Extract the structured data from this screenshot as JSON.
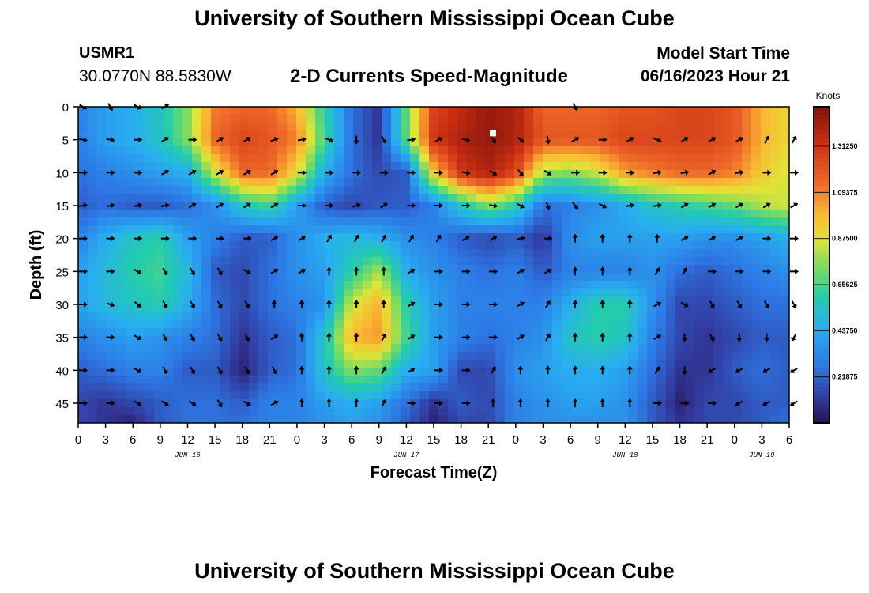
{
  "header": {
    "title": "University of Southern Mississippi Ocean Cube",
    "station": "USMR1",
    "coords": "30.0770N  88.5830W",
    "subtitle": "2-D Currents Speed-Magnitude",
    "start_label": "Model Start Time",
    "start_value": "06/16/2023 Hour 21"
  },
  "footer": {
    "title": "University of Southern Mississippi Ocean Cube"
  },
  "chart_data": {
    "type": "heatmap",
    "title": "2-D Currents Speed-Magnitude",
    "xlabel": "Forecast Time(Z)",
    "ylabel": "Depth (ft)",
    "x_range_hours": [
      0,
      78
    ],
    "y_range_ft": [
      0,
      48
    ],
    "y_reversed": true,
    "x_tick_labels": [
      "0",
      "3",
      "6",
      "9",
      "12",
      "15",
      "18",
      "21",
      "0",
      "3",
      "6",
      "9",
      "12",
      "15",
      "18",
      "21",
      "0",
      "3",
      "6",
      "9",
      "12",
      "15",
      "18",
      "21",
      "0",
      "3",
      "6"
    ],
    "x_tick_hours": [
      0,
      3,
      6,
      9,
      12,
      15,
      18,
      21,
      24,
      27,
      30,
      33,
      36,
      39,
      42,
      45,
      48,
      51,
      54,
      57,
      60,
      63,
      66,
      69,
      72,
      75,
      78
    ],
    "date_labels": [
      {
        "text": "JUN 16",
        "hour": 12
      },
      {
        "text": "JUN 17",
        "hour": 36
      },
      {
        "text": "JUN 18",
        "hour": 60
      },
      {
        "text": "JUN 19",
        "hour": 75
      }
    ],
    "y_ticks": [
      0,
      5,
      10,
      15,
      20,
      25,
      30,
      35,
      40,
      45
    ],
    "colorbar": {
      "title": "Knots",
      "range": [
        0,
        1.5
      ],
      "tick_values": [
        0.21875,
        0.4375,
        0.65625,
        0.875,
        1.09375,
        1.3125
      ],
      "tick_labels": [
        "0.21875",
        "0.43750",
        "0.65625",
        "0.87500",
        "1.09375",
        "1.31250"
      ]
    },
    "marker": {
      "hour": 45.5,
      "depth_ft": 4
    },
    "speed_depths_ft": [
      0,
      5,
      10,
      15,
      20,
      25,
      30,
      35,
      40,
      45,
      48
    ],
    "speed_hours": [
      0,
      3,
      6,
      9,
      12,
      15,
      18,
      21,
      24,
      27,
      30,
      33,
      36,
      39,
      42,
      45,
      48,
      51,
      54,
      57,
      60,
      63,
      66,
      69,
      72,
      75,
      78
    ],
    "speed_knots": [
      [
        0.3,
        0.4,
        0.45,
        0.55,
        0.75,
        1.1,
        1.15,
        1.15,
        1.0,
        0.6,
        0.25,
        0.1,
        0.7,
        1.25,
        1.35,
        1.45,
        1.4,
        1.15,
        1.15,
        1.15,
        1.2,
        1.2,
        1.25,
        1.25,
        1.2,
        1.0,
        0.9
      ],
      [
        0.3,
        0.4,
        0.45,
        0.55,
        0.75,
        1.15,
        1.25,
        1.2,
        1.1,
        0.65,
        0.25,
        0.1,
        0.7,
        1.3,
        1.4,
        1.45,
        1.4,
        1.2,
        1.2,
        1.2,
        1.25,
        1.25,
        1.25,
        1.25,
        1.2,
        1.0,
        0.9
      ],
      [
        0.25,
        0.3,
        0.35,
        0.4,
        0.45,
        0.85,
        1.15,
        1.15,
        0.9,
        0.45,
        0.25,
        0.15,
        0.2,
        0.95,
        1.3,
        1.4,
        1.25,
        0.8,
        0.75,
        0.85,
        1.05,
        1.1,
        1.15,
        1.15,
        1.1,
        0.95,
        0.85
      ],
      [
        0.2,
        0.25,
        0.2,
        0.2,
        0.25,
        0.35,
        0.55,
        0.65,
        0.4,
        0.2,
        0.15,
        0.2,
        0.2,
        0.3,
        0.55,
        0.75,
        0.6,
        0.25,
        0.3,
        0.35,
        0.45,
        0.55,
        0.6,
        0.65,
        0.7,
        0.8,
        0.85
      ],
      [
        0.3,
        0.45,
        0.55,
        0.6,
        0.4,
        0.3,
        0.2,
        0.2,
        0.35,
        0.45,
        0.5,
        0.45,
        0.35,
        0.3,
        0.2,
        0.15,
        0.2,
        0.1,
        0.35,
        0.4,
        0.4,
        0.4,
        0.4,
        0.35,
        0.35,
        0.4,
        0.45
      ],
      [
        0.4,
        0.5,
        0.6,
        0.65,
        0.5,
        0.2,
        0.15,
        0.25,
        0.35,
        0.4,
        0.6,
        0.8,
        0.45,
        0.35,
        0.3,
        0.25,
        0.3,
        0.2,
        0.3,
        0.3,
        0.3,
        0.35,
        0.25,
        0.2,
        0.25,
        0.3,
        0.35
      ],
      [
        0.4,
        0.5,
        0.55,
        0.6,
        0.45,
        0.25,
        0.15,
        0.25,
        0.3,
        0.35,
        0.85,
        1.0,
        0.6,
        0.4,
        0.3,
        0.3,
        0.3,
        0.3,
        0.45,
        0.6,
        0.6,
        0.35,
        0.15,
        0.15,
        0.2,
        0.25,
        0.25
      ],
      [
        0.3,
        0.35,
        0.4,
        0.35,
        0.3,
        0.25,
        0.1,
        0.2,
        0.25,
        0.55,
        1.0,
        1.05,
        0.65,
        0.4,
        0.3,
        0.25,
        0.3,
        0.35,
        0.55,
        0.6,
        0.55,
        0.3,
        0.15,
        0.1,
        0.15,
        0.2,
        0.2
      ],
      [
        0.2,
        0.25,
        0.3,
        0.3,
        0.2,
        0.2,
        0.05,
        0.2,
        0.25,
        0.55,
        0.75,
        0.7,
        0.45,
        0.4,
        0.15,
        0.15,
        0.35,
        0.4,
        0.45,
        0.45,
        0.4,
        0.25,
        0.1,
        0.1,
        0.2,
        0.25,
        0.2
      ],
      [
        0.15,
        0.1,
        0.15,
        0.2,
        0.25,
        0.25,
        0.2,
        0.3,
        0.3,
        0.4,
        0.45,
        0.4,
        0.25,
        0.1,
        0.2,
        0.15,
        0.3,
        0.35,
        0.4,
        0.4,
        0.35,
        0.2,
        0.05,
        0.15,
        0.15,
        0.2,
        0.2
      ],
      [
        0.15,
        0.1,
        0.05,
        0.2,
        0.25,
        0.25,
        0.25,
        0.3,
        0.3,
        0.35,
        0.4,
        0.35,
        0.2,
        0.05,
        0.15,
        0.15,
        0.3,
        0.35,
        0.35,
        0.35,
        0.35,
        0.2,
        0.1,
        0.15,
        0.15,
        0.2,
        0.25
      ]
    ],
    "vectors": [
      {
        "d": 0,
        "dirs": [
          120,
          150,
          120,
          60,
          null,
          null,
          null,
          null,
          null,
          null,
          null,
          null,
          null,
          null,
          null,
          null,
          null,
          null,
          150,
          null,
          null,
          null,
          null,
          null,
          null,
          null,
          null
        ]
      },
      {
        "d": 5,
        "dirs": [
          100,
          100,
          90,
          60,
          90,
          60,
          60,
          70,
          80,
          110,
          180,
          150,
          80,
          60,
          100,
          140,
          130,
          170,
          60,
          90,
          60,
          110,
          60,
          60,
          60,
          30,
          30
        ]
      },
      {
        "d": 10,
        "dirs": [
          90,
          90,
          90,
          60,
          60,
          60,
          60,
          60,
          90,
          90,
          90,
          90,
          90,
          90,
          100,
          120,
          140,
          120,
          90,
          90,
          90,
          80,
          80,
          60,
          80,
          90,
          90
        ]
      },
      {
        "d": 15,
        "dirs": [
          80,
          80,
          80,
          80,
          60,
          60,
          60,
          60,
          90,
          90,
          70,
          60,
          90,
          90,
          90,
          100,
          120,
          160,
          140,
          120,
          80,
          80,
          60,
          60,
          60,
          60,
          60
        ]
      },
      {
        "d": 20,
        "dirs": [
          90,
          90,
          90,
          90,
          90,
          90,
          90,
          60,
          60,
          30,
          30,
          30,
          30,
          30,
          60,
          60,
          80,
          90,
          0,
          0,
          0,
          0,
          60,
          60,
          60,
          90,
          90
        ]
      },
      {
        "d": 25,
        "dirs": [
          90,
          90,
          120,
          150,
          150,
          150,
          120,
          60,
          60,
          0,
          0,
          0,
          60,
          90,
          90,
          90,
          60,
          60,
          0,
          0,
          0,
          30,
          30,
          90,
          90,
          90,
          90
        ]
      },
      {
        "d": 30,
        "dirs": [
          90,
          110,
          130,
          150,
          150,
          150,
          150,
          0,
          0,
          0,
          0,
          0,
          60,
          90,
          90,
          90,
          60,
          30,
          0,
          0,
          0,
          60,
          120,
          150,
          150,
          150,
          150
        ]
      },
      {
        "d": 35,
        "dirs": [
          90,
          90,
          120,
          150,
          150,
          150,
          150,
          60,
          0,
          0,
          0,
          30,
          60,
          90,
          90,
          90,
          60,
          30,
          0,
          0,
          0,
          60,
          180,
          150,
          180,
          180,
          210
        ]
      },
      {
        "d": 40,
        "dirs": [
          90,
          90,
          120,
          150,
          150,
          150,
          150,
          150,
          0,
          0,
          0,
          30,
          60,
          90,
          90,
          30,
          0,
          0,
          0,
          0,
          0,
          30,
          180,
          240,
          240,
          240,
          240
        ]
      },
      {
        "d": 45,
        "dirs": [
          90,
          90,
          120,
          120,
          120,
          150,
          120,
          60,
          0,
          0,
          0,
          30,
          90,
          90,
          90,
          0,
          0,
          0,
          0,
          0,
          0,
          90,
          90,
          90,
          240,
          240,
          240
        ]
      }
    ]
  }
}
